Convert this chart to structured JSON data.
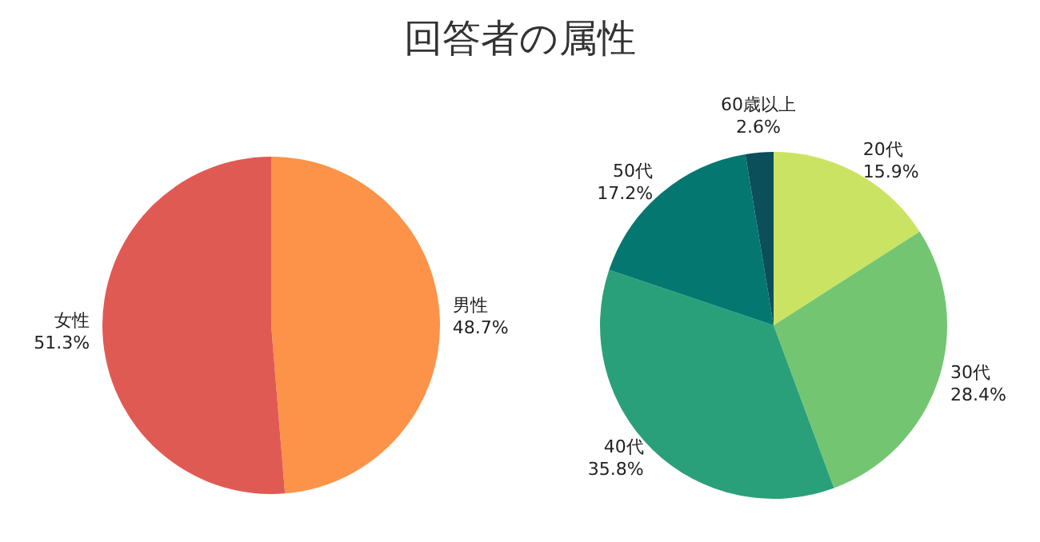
{
  "chart_data": [
    {
      "type": "pie",
      "title": "回答者の属性",
      "categories": [
        "男性",
        "女性"
      ],
      "values": [
        48.7,
        51.3
      ],
      "colors": [
        "#fd9349",
        "#e05a54"
      ],
      "value_labels": [
        "48.7%",
        "51.3%"
      ]
    },
    {
      "type": "pie",
      "categories": [
        "20代",
        "30代",
        "40代",
        "50代",
        "60歳以上"
      ],
      "values": [
        15.9,
        28.4,
        35.8,
        17.2,
        2.6
      ],
      "colors": [
        "#cbe362",
        "#74c572",
        "#2aa07a",
        "#047870",
        "#0a4f5a"
      ],
      "value_labels": [
        "15.9%",
        "28.4%",
        "35.8%",
        "17.2%",
        "2.6%"
      ]
    }
  ]
}
